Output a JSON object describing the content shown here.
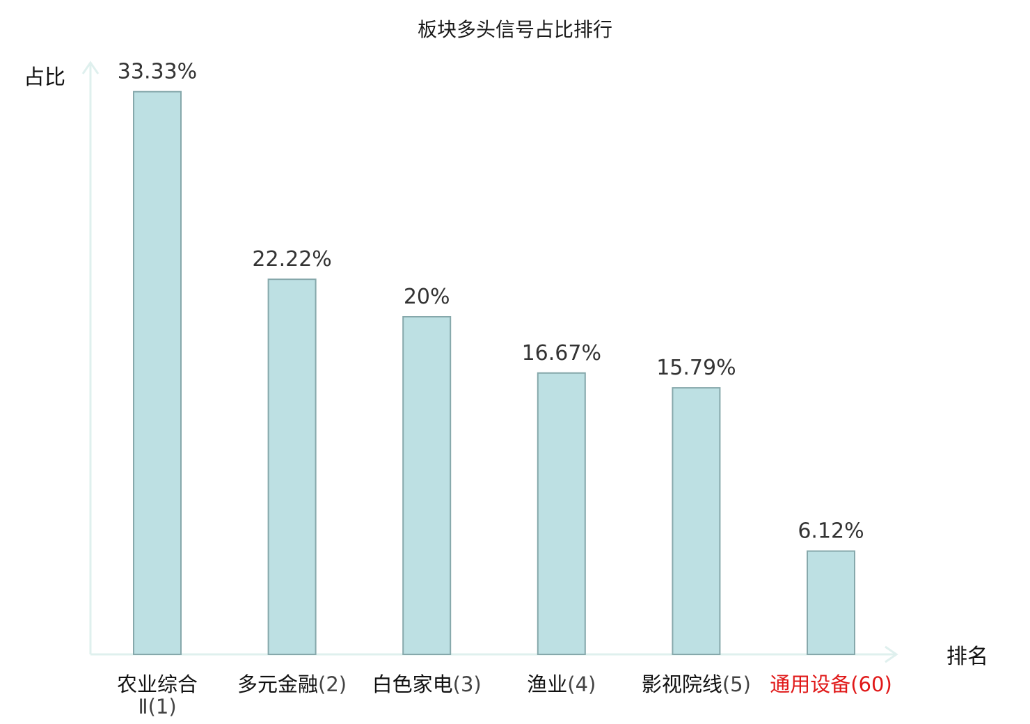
{
  "chart_data": {
    "type": "bar",
    "title": "板块多头信号占比排行",
    "ylabel": "占比",
    "xlabel": "排名",
    "ylim": [
      0,
      34
    ],
    "grid": false,
    "legend": "none",
    "categories": [
      {
        "name": "农业综合",
        "name_line2": "Ⅱ",
        "rank": "(1)",
        "highlight": false
      },
      {
        "name": "多元金融",
        "name_line2": "",
        "rank": "(2)",
        "highlight": false
      },
      {
        "name": "白色家电",
        "name_line2": "",
        "rank": "(3)",
        "highlight": false
      },
      {
        "name": "渔业",
        "name_line2": "",
        "rank": "(4)",
        "highlight": false
      },
      {
        "name": "影视院线",
        "name_line2": "",
        "rank": "(5)",
        "highlight": false
      },
      {
        "name": "通用设备",
        "name_line2": "",
        "rank": "(60)",
        "highlight": true
      }
    ],
    "values": [
      33.33,
      22.22,
      20,
      16.67,
      15.79,
      6.12
    ],
    "value_labels": [
      "33.33%",
      "22.22%",
      "20%",
      "16.67%",
      "15.79%",
      "6.12%"
    ],
    "colors": {
      "bar_fill": "#bde0e3",
      "bar_stroke": "#86a8ab",
      "axis": "#dff0ee",
      "highlight_text": "#e01818"
    }
  }
}
